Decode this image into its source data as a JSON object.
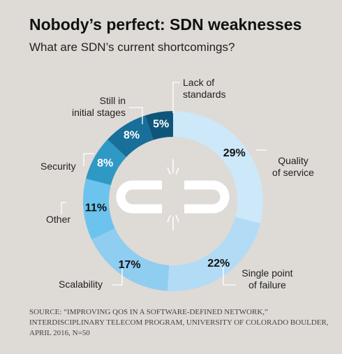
{
  "chart_data": {
    "type": "donut",
    "title": "Nobody’s perfect: SDN weaknesses",
    "subtitle": "What are SDN’s current shortcomings?",
    "categories": [
      "Quality\nof service",
      "Single point\nof failure",
      "Scalability",
      "Other",
      "Security",
      "Still in\ninitial stages",
      "Lack of\nstandards"
    ],
    "values": [
      29,
      22,
      17,
      11,
      8,
      8,
      5
    ],
    "value_labels": [
      "29%",
      "22%",
      "17%",
      "11%",
      "8%",
      "8%",
      "5%"
    ],
    "colors": [
      "#cde8f8",
      "#b2dbf5",
      "#8fcdf1",
      "#6cc3ee",
      "#2f99c5",
      "#186f99",
      "#0f557a"
    ],
    "source": "SOURCE: “IMPROVING QOS IN A SOFTWARE-DEFINED NETWORK,”\nINTERDISCIPLINARY TELECOM PROGRAM, UNIVERSITY OF COLORADO BOULDER,\nAPRIL 2016, N=50"
  }
}
